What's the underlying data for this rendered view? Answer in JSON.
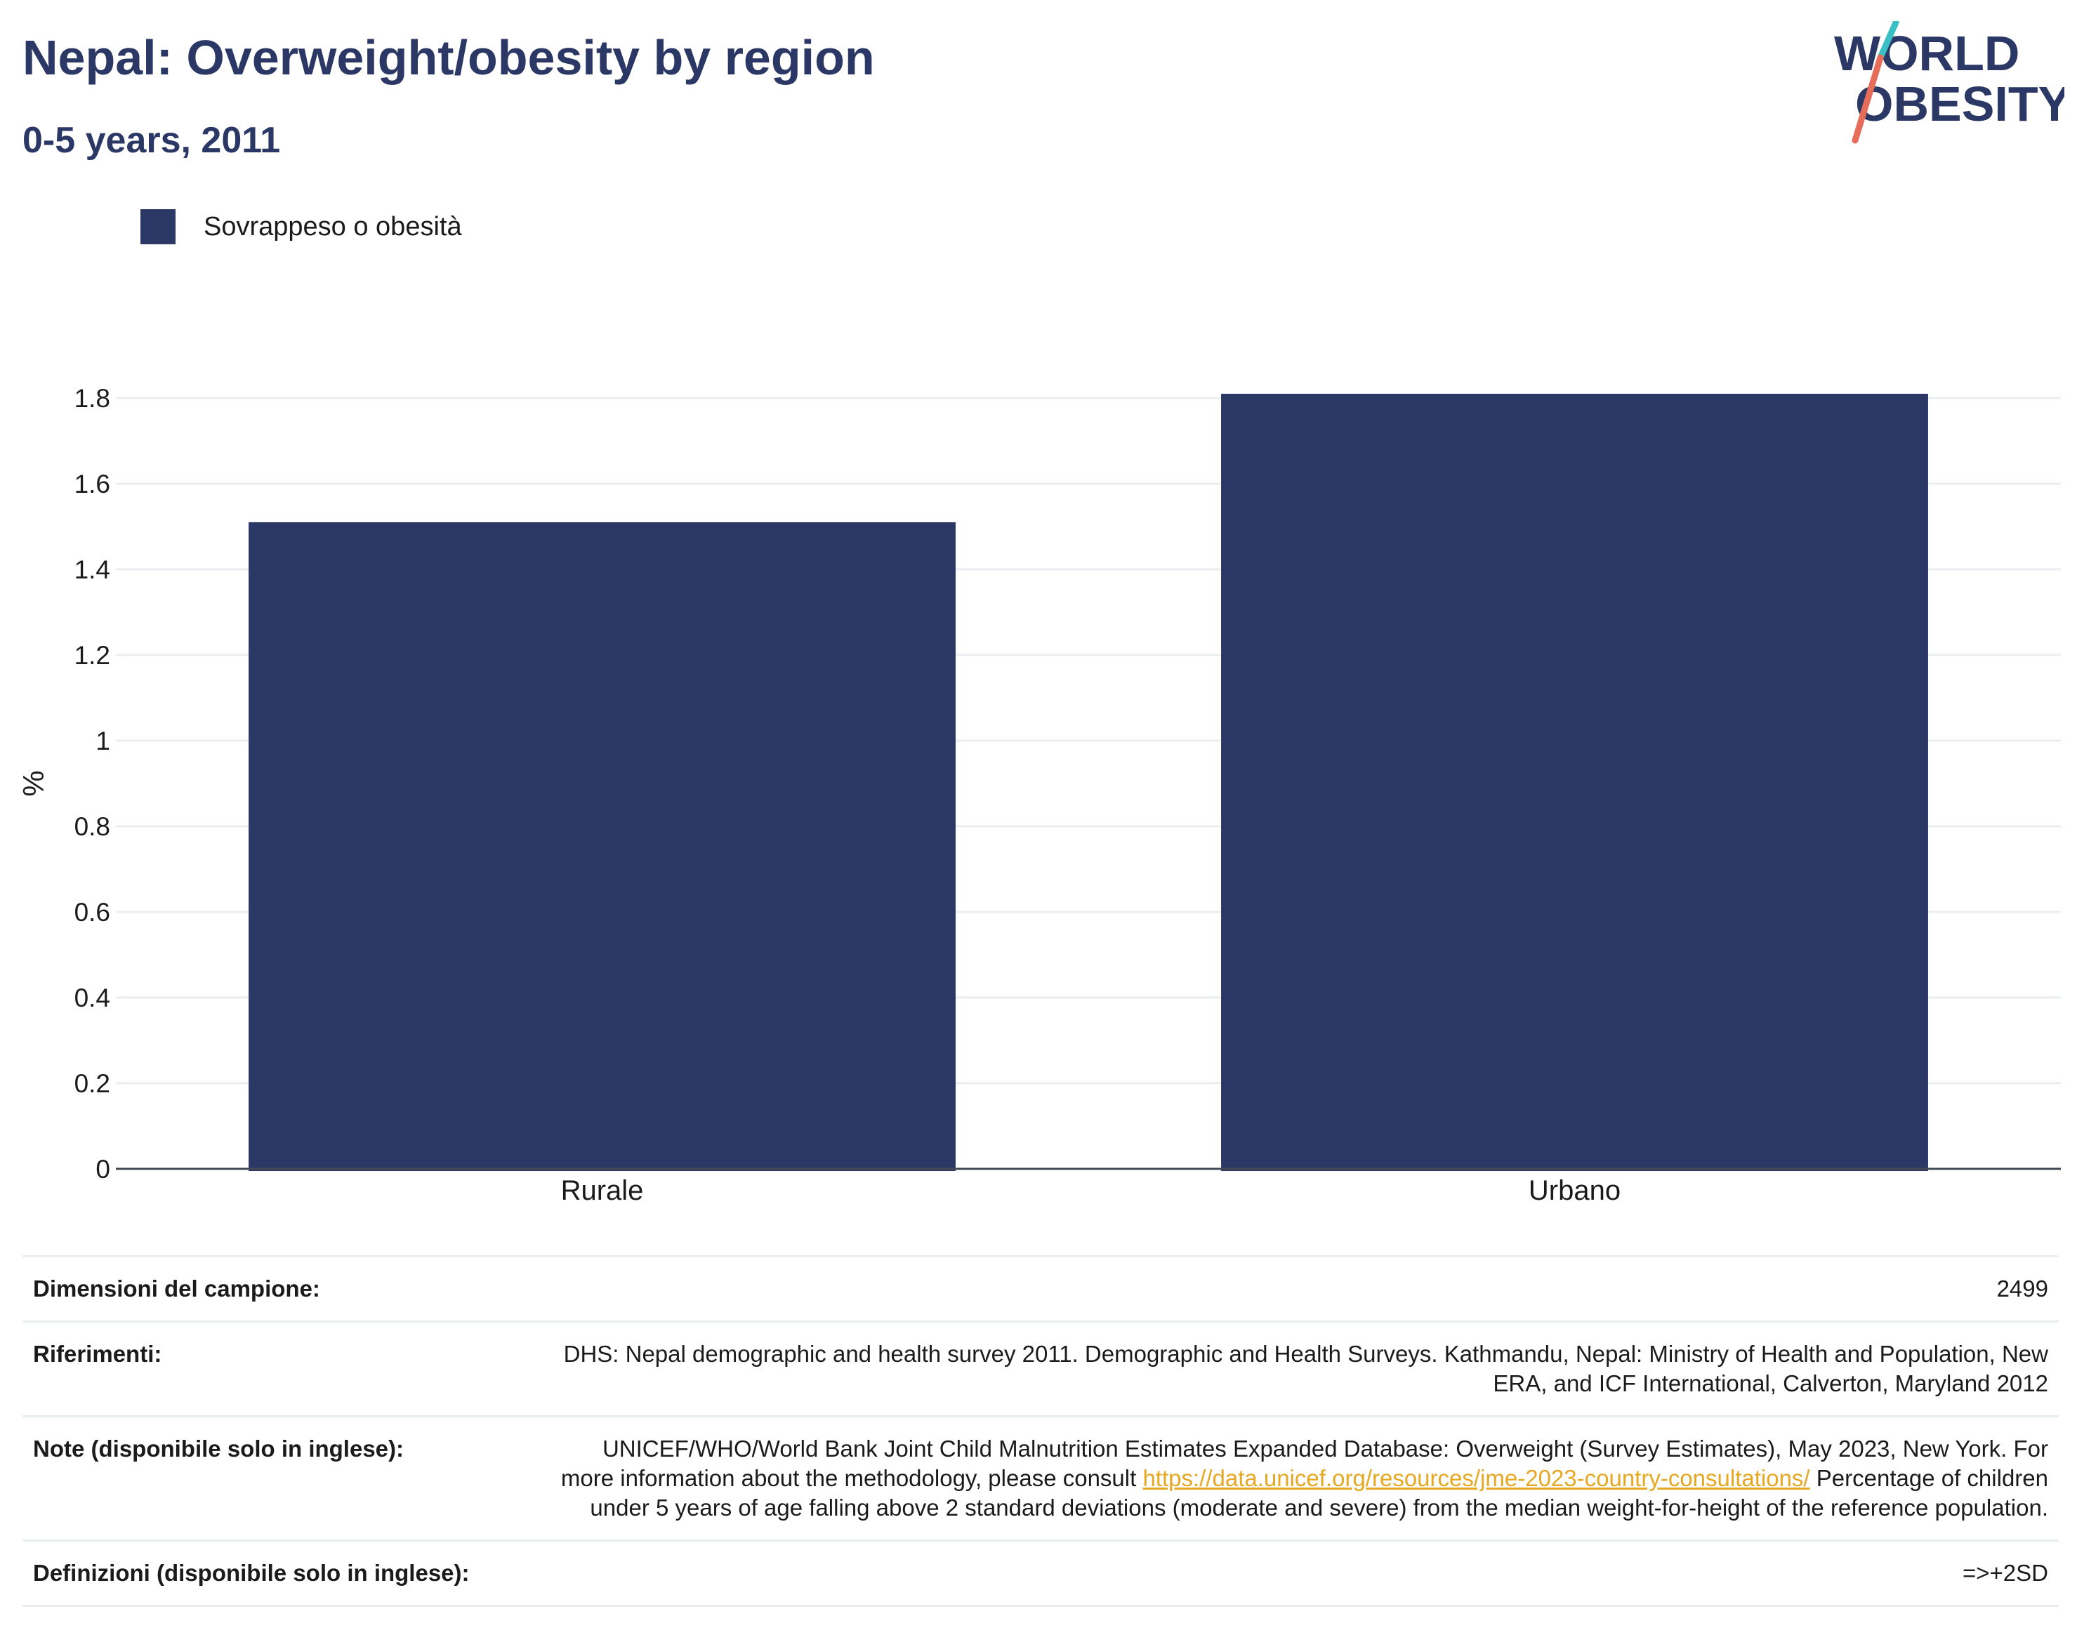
{
  "header": {
    "title": "Nepal: Overweight/obesity by region",
    "subtitle": "0-5 years, 2011"
  },
  "logo": {
    "line1": "WORLD",
    "line2": "OBESITY",
    "colors": {
      "text": "#2b3765",
      "slash_top": "#3bbfc4",
      "slash_bottom": "#e66d5a"
    }
  },
  "legend": {
    "label": "Sovrappeso o obesità",
    "color": "#2b3765"
  },
  "chart_data": {
    "type": "bar",
    "categories": [
      "Rurale",
      "Urbano"
    ],
    "series": [
      {
        "name": "Sovrappeso o obesità",
        "values": [
          1.51,
          1.81
        ],
        "color": "#2b3765"
      }
    ],
    "ylabel": "%",
    "xlabel": "",
    "ylim": [
      0,
      1.8
    ],
    "yticks": [
      "0",
      "0.2",
      "0.4",
      "0.6",
      "0.8",
      "1",
      "1.2",
      "1.4",
      "1.6",
      "1.8"
    ],
    "grid": true,
    "legend_position": "top-left"
  },
  "info": {
    "sample_label": "Dimensioni del campione:",
    "sample_value": "2499",
    "refs_label": "Riferimenti:",
    "refs_value": "DHS: Nepal demographic and health survey 2011. Demographic and Health Surveys. Kathmandu, Nepal: Ministry of Health and Population, New ERA, and ICF International, Calverton, Maryland 2012",
    "notes_label": "Note (disponibile solo in inglese):",
    "notes_text_1": "UNICEF/WHO/World Bank Joint Child Malnutrition Estimates Expanded Database: Overweight (Survey Estimates), May 2023, New York. For more information about the methodology, please consult ",
    "notes_link": "https://data.unicef.org/resources/jme-2023-country-consultations/",
    "notes_text_2": " Percentage of children under 5 years of age falling above 2 standard deviations (moderate and severe) from the median weight-for-height of the reference population.",
    "defs_label": "Definizioni (disponibile solo in inglese):",
    "defs_value": "=>+2SD"
  }
}
